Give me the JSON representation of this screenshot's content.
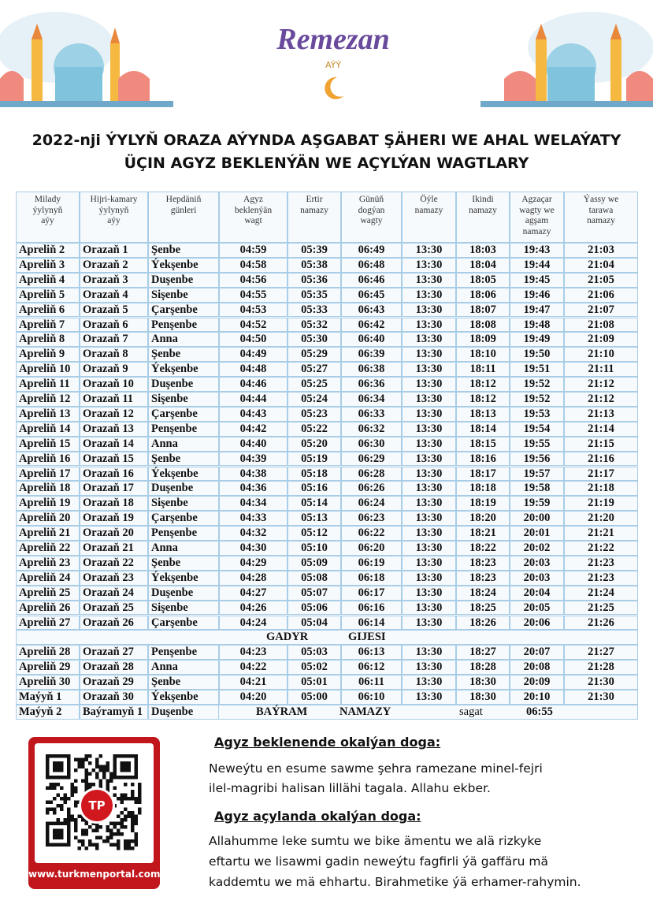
{
  "header": {
    "logo": "Remezan",
    "logo_sub": "AÝÝ"
  },
  "title": [
    "2022-nji ÝYLYŇ ORAZA AÝYNDA AŞGABAT ŞÄHERI WE AHAL WELAÝATY",
    "ÜÇIN AGYZ BEKLENÝÄN WE AÇYLÝAN WAGTLARY"
  ],
  "table": {
    "headers": [
      [
        "Milady",
        "ýylynyň",
        "aýy"
      ],
      [
        "Hijri-kamary",
        "ýylynyň",
        "aýy"
      ],
      [
        "Hepdäniň",
        "günleri"
      ],
      [
        "Agyz",
        "beklenýän",
        "wagt"
      ],
      [
        "Ertir",
        "namazy"
      ],
      [
        "Günüň",
        "dogýan",
        "wagty"
      ],
      [
        "Öýle",
        "namazy"
      ],
      [
        "Ikindi",
        "namazy"
      ],
      [
        "Agzaçar",
        "wagty we",
        "agşam",
        "namazy"
      ],
      [
        "Ýassy we",
        "tarawa",
        "namazy"
      ]
    ],
    "rows": [
      [
        "Apreliň 2",
        "Orazaň 1",
        "Şenbe",
        "04:59",
        "05:39",
        "06:49",
        "13:30",
        "18:03",
        "19:43",
        "21:03"
      ],
      [
        "Apreliň 3",
        "Orazaň 2",
        "Ýekşenbe",
        "04:58",
        "05:38",
        "06:48",
        "13:30",
        "18:04",
        "19:44",
        "21:04"
      ],
      [
        "Apreliň 4",
        "Orazaň 3",
        "Duşenbe",
        "04:56",
        "05:36",
        "06:46",
        "13:30",
        "18:05",
        "19:45",
        "21:05"
      ],
      [
        "Apreliň 5",
        "Orazaň 4",
        "Sişenbe",
        "04:55",
        "05:35",
        "06:45",
        "13:30",
        "18:06",
        "19:46",
        "21:06"
      ],
      [
        "Apreliň 6",
        "Orazaň 5",
        "Çarşenbe",
        "04:53",
        "05:33",
        "06:43",
        "13:30",
        "18:07",
        "19:47",
        "21:07"
      ],
      [
        "Apreliň 7",
        "Orazaň 6",
        "Penşenbe",
        "04:52",
        "05:32",
        "06:42",
        "13:30",
        "18:08",
        "19:48",
        "21:08"
      ],
      [
        "Apreliň 8",
        "Orazaň 7",
        "Anna",
        "04:50",
        "05:30",
        "06:40",
        "13:30",
        "18:09",
        "19:49",
        "21:09"
      ],
      [
        "Apreliň 9",
        "Orazaň 8",
        "Şenbe",
        "04:49",
        "05:29",
        "06:39",
        "13:30",
        "18:10",
        "19:50",
        "21:10"
      ],
      [
        "Apreliň 10",
        "Orazaň 9",
        "Ýekşenbe",
        "04:48",
        "05:27",
        "06:38",
        "13:30",
        "18:11",
        "19:51",
        "21:11"
      ],
      [
        "Apreliň 11",
        "Orazaň 10",
        "Duşenbe",
        "04:46",
        "05:25",
        "06:36",
        "13:30",
        "18:12",
        "19:52",
        "21:12"
      ],
      [
        "Apreliň 12",
        "Orazaň 11",
        "Sişenbe",
        "04:44",
        "05:24",
        "06:34",
        "13:30",
        "18:12",
        "19:52",
        "21:12"
      ],
      [
        "Apreliň 13",
        "Orazaň 12",
        "Çarşenbe",
        "04:43",
        "05:23",
        "06:33",
        "13:30",
        "18:13",
        "19:53",
        "21:13"
      ],
      [
        "Apreliň 14",
        "Orazaň 13",
        "Penşenbe",
        "04:42",
        "05:22",
        "06:32",
        "13:30",
        "18:14",
        "19:54",
        "21:14"
      ],
      [
        "Apreliň 15",
        "Orazaň 14",
        "Anna",
        "04:40",
        "05:20",
        "06:30",
        "13:30",
        "18:15",
        "19:55",
        "21:15"
      ],
      [
        "Apreliň 16",
        "Orazaň 15",
        "Şenbe",
        "04:39",
        "05:19",
        "06:29",
        "13:30",
        "18:16",
        "19:56",
        "21:16"
      ],
      [
        "Apreliň 17",
        "Orazaň 16",
        "Ýekşenbe",
        "04:38",
        "05:18",
        "06:28",
        "13:30",
        "18:17",
        "19:57",
        "21:17"
      ],
      [
        "Apreliň 18",
        "Orazaň 17",
        "Duşenbe",
        "04:36",
        "05:16",
        "06:26",
        "13:30",
        "18:18",
        "19:58",
        "21:18"
      ],
      [
        "Apreliň 19",
        "Orazaň 18",
        "Sişenbe",
        "04:34",
        "05:14",
        "06:24",
        "13:30",
        "18:19",
        "19:59",
        "21:19"
      ],
      [
        "Apreliň 20",
        "Orazaň 19",
        "Çarşenbe",
        "04:33",
        "05:13",
        "06:23",
        "13:30",
        "18:20",
        "20:00",
        "21:20"
      ],
      [
        "Apreliň 21",
        "Orazaň 20",
        "Penşenbe",
        "04:32",
        "05:12",
        "06:22",
        "13:30",
        "18:21",
        "20:01",
        "21:21"
      ],
      [
        "Apreliň 22",
        "Orazaň 21",
        "Anna",
        "04:30",
        "05:10",
        "06:20",
        "13:30",
        "18:22",
        "20:02",
        "21:22"
      ],
      [
        "Apreliň 23",
        "Orazaň 22",
        "Şenbe",
        "04:29",
        "05:09",
        "06:19",
        "13:30",
        "18:23",
        "20:03",
        "21:23"
      ],
      [
        "Apreliň 24",
        "Orazaň 23",
        "Ýekşenbe",
        "04:28",
        "05:08",
        "06:18",
        "13:30",
        "18:23",
        "20:03",
        "21:23"
      ],
      [
        "Apreliň 25",
        "Orazaň 24",
        "Duşenbe",
        "04:27",
        "05:07",
        "06:17",
        "13:30",
        "18:24",
        "20:04",
        "21:24"
      ],
      [
        "Apreliň 26",
        "Orazaň 25",
        "Sişenbe",
        "04:26",
        "05:06",
        "06:16",
        "13:30",
        "18:25",
        "20:05",
        "21:25"
      ],
      [
        "Apreliň 27",
        "Orazaň 26",
        "Çarşenbe",
        "04:24",
        "05:04",
        "06:14",
        "13:30",
        "18:26",
        "20:06",
        "21:26"
      ]
    ],
    "gadyr": [
      "GADYR",
      "GIJESI"
    ],
    "rows_after_gadyr": [
      [
        "Apreliň 28",
        "Orazaň 27",
        "Penşenbe",
        "04:23",
        "05:03",
        "06:13",
        "13:30",
        "18:27",
        "20:07",
        "21:27"
      ],
      [
        "Apreliň 29",
        "Orazaň 28",
        "Anna",
        "04:22",
        "05:02",
        "06:12",
        "13:30",
        "18:28",
        "20:08",
        "21:28"
      ],
      [
        "Apreliň 30",
        "Orazaň 29",
        "Şenbe",
        "04:21",
        "05:01",
        "06:11",
        "13:30",
        "18:30",
        "20:09",
        "21:30"
      ],
      [
        "Maýyň 1",
        "Orazaň 30",
        "Ýekşenbe",
        "04:20",
        "05:00",
        "06:10",
        "13:30",
        "18:30",
        "20:10",
        "21:30"
      ]
    ],
    "bayram": [
      "Maýyň 2",
      "Baýramyň 1",
      "Duşenbe",
      "BAÝRAM",
      "NAMAZY",
      "sagat",
      "06:55"
    ]
  },
  "qr": {
    "logo": "TP",
    "url": "www.turkmenportal.com"
  },
  "prayers": [
    {
      "heading": "Agyz beklenende okalýan doga:",
      "lines": [
        "Neweýtu en esume sawme şehra ramezane minel-fejri",
        "ilel-magribi halisan lillähi tagala. Allahu ekber."
      ]
    },
    {
      "heading": "Agyz açylanda okalýan doga:",
      "lines": [
        "Allahumme leke sumtu we bike ämentu we alä rizkyke",
        "eftartu we lisawmi gadin neweýtu fagfirli ýä gaffäru mä",
        "kaddemtu we mä ehhartu. Birahmetike ýä erhamer-rahymin."
      ]
    }
  ]
}
